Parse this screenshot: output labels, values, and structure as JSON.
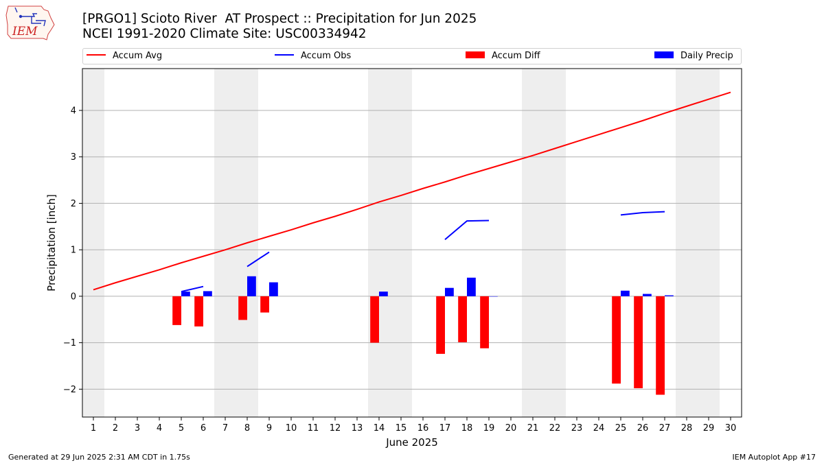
{
  "header": {
    "title_line1": "[PRGO1] Scioto River  AT Prospect :: Precipitation for Jun 2025",
    "title_line2": "NCEI 1991-2020 Climate Site: USC00334942",
    "logo_text": "IEM"
  },
  "footer": {
    "left": "Generated at 29 Jun 2025 2:31 AM CDT in 1.75s",
    "right": "IEM Autoplot App #17"
  },
  "colors": {
    "accum_avg": "#ff0000",
    "accum_obs": "#0000ff",
    "accum_diff": "#ff0000",
    "daily_precip": "#0000ff",
    "weekend_shade": "#eeeeee",
    "grid": "#b0b0b0"
  },
  "chart_data": {
    "type": "bar",
    "xlabel": "June 2025",
    "ylabel": "Precipitation [inch]",
    "xlim": [
      0.5,
      30.5
    ],
    "ylim": [
      -2.6,
      4.9
    ],
    "yticks": [
      -2,
      -1,
      0,
      1,
      2,
      3,
      4
    ],
    "ytick_labels": [
      "−2",
      "−1",
      "0",
      "1",
      "2",
      "3",
      "4"
    ],
    "xticks": [
      1,
      2,
      3,
      4,
      5,
      6,
      7,
      8,
      9,
      10,
      11,
      12,
      13,
      14,
      15,
      16,
      17,
      18,
      19,
      20,
      21,
      22,
      23,
      24,
      25,
      26,
      27,
      28,
      29,
      30
    ],
    "grid": "horizontal",
    "legend_placement": "top",
    "weekend_days": [
      1,
      7,
      8,
      14,
      15,
      21,
      22,
      28,
      29
    ],
    "legend": [
      "Accum Avg",
      "Accum Obs",
      "Accum Diff",
      "Daily Precip"
    ],
    "series": [
      {
        "name": "Accum Avg",
        "type": "line",
        "x": [
          1,
          2,
          3,
          4,
          5,
          6,
          7,
          8,
          9,
          10,
          11,
          12,
          13,
          14,
          15,
          16,
          17,
          18,
          19,
          20,
          21,
          22,
          23,
          24,
          25,
          26,
          27,
          28,
          29,
          30
        ],
        "values": [
          0.14,
          0.29,
          0.43,
          0.57,
          0.72,
          0.86,
          1.0,
          1.15,
          1.29,
          1.43,
          1.58,
          1.72,
          1.87,
          2.03,
          2.17,
          2.32,
          2.46,
          2.61,
          2.75,
          2.89,
          3.03,
          3.18,
          3.33,
          3.48,
          3.63,
          3.78,
          3.94,
          4.09,
          4.24,
          4.39
        ]
      },
      {
        "name": "Accum Obs",
        "type": "line",
        "segments": [
          {
            "x": [
              5,
              6
            ],
            "values": [
              0.1,
              0.21
            ]
          },
          {
            "x": [
              8,
              9
            ],
            "values": [
              0.64,
              0.95
            ]
          },
          {
            "x": [
              17,
              18,
              19
            ],
            "values": [
              1.22,
              1.62,
              1.63
            ]
          },
          {
            "x": [
              25,
              26,
              27
            ],
            "values": [
              1.75,
              1.8,
              1.82
            ]
          }
        ]
      },
      {
        "name": "Accum Diff",
        "type": "bar",
        "x": [
          5,
          6,
          8,
          9,
          14,
          17,
          18,
          19,
          25,
          26,
          27
        ],
        "values": [
          -0.62,
          -0.65,
          -0.51,
          -0.35,
          -1.0,
          -1.24,
          -0.99,
          -1.12,
          -1.88,
          -1.98,
          -2.12
        ]
      },
      {
        "name": "Daily Precip",
        "type": "bar",
        "x": [
          5,
          6,
          8,
          9,
          14,
          17,
          18,
          19,
          25,
          26,
          27
        ],
        "values": [
          0.1,
          0.11,
          0.43,
          0.3,
          0.1,
          0.18,
          0.4,
          0.0,
          0.12,
          0.05,
          0.02
        ]
      }
    ]
  }
}
